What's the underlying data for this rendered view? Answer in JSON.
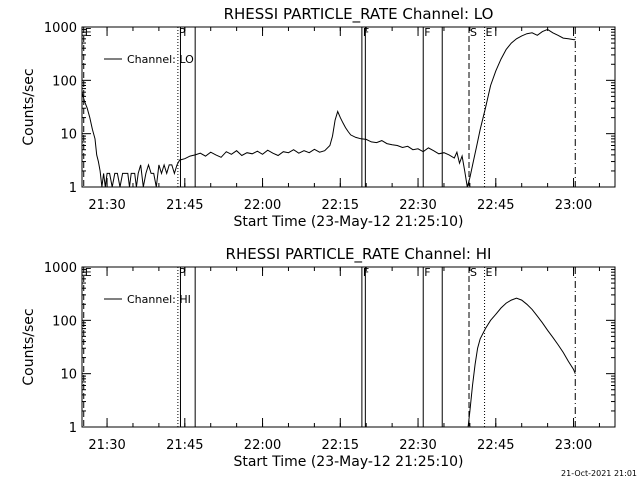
{
  "footer": {
    "timestamp": "21-Oct-2021 21:01"
  },
  "chart_data": [
    {
      "type": "line",
      "title": "RHESSI PARTICLE_RATE Channel: LO",
      "xlabel": "Start Time (23-May-12 21:25:10)",
      "ylabel": "Counts/sec",
      "yscale": "log",
      "ylim": [
        1,
        1000
      ],
      "xlim": [
        "21:25:10",
        "23:08:00"
      ],
      "x_ticks": [
        "21:30",
        "21:45",
        "22:00",
        "22:15",
        "22:30",
        "22:45",
        "23:00"
      ],
      "y_ticks": [
        "1",
        "10",
        "100",
        "1000"
      ],
      "legend": {
        "position": "top-left",
        "entries": [
          "Channel: LO"
        ]
      },
      "markers": [
        {
          "label": "E",
          "time": "21:25:30",
          "style": "dashed"
        },
        {
          "label": "P",
          "time": "21:43:40",
          "style": "dotted"
        },
        {
          "label": "",
          "time": "21:44:10",
          "style": "solid"
        },
        {
          "label": "",
          "time": "21:47:00",
          "style": "solid"
        },
        {
          "label": "F",
          "time": "22:19:10",
          "style": "solid"
        },
        {
          "label": "",
          "time": "22:19:50",
          "style": "solid"
        },
        {
          "label": "F",
          "time": "22:31:00",
          "style": "solid"
        },
        {
          "label": "",
          "time": "22:34:40",
          "style": "solid"
        },
        {
          "label": "S",
          "time": "22:39:50",
          "style": "dashed"
        },
        {
          "label": "E",
          "time": "22:42:50",
          "style": "dotted"
        },
        {
          "label": "",
          "time": "23:00:20",
          "style": "dashdot"
        }
      ],
      "series": [
        {
          "name": "Channel: LO",
          "points": [
            [
              "21:25:10",
              60
            ],
            [
              "21:25:40",
              40
            ],
            [
              "21:26:10",
              30
            ],
            [
              "21:26:40",
              20
            ],
            [
              "21:27:10",
              12
            ],
            [
              "21:27:40",
              8
            ],
            [
              "21:28:00",
              4
            ],
            [
              "21:28:20",
              3
            ],
            [
              "21:28:40",
              2
            ],
            [
              "21:29:00",
              1
            ],
            [
              "21:29:20",
              1.8
            ],
            [
              "21:29:40",
              1
            ],
            [
              "21:30:00",
              1.8
            ],
            [
              "21:30:30",
              1.8
            ],
            [
              "21:31:00",
              1
            ],
            [
              "21:31:30",
              1.8
            ],
            [
              "21:32:00",
              1.8
            ],
            [
              "21:32:30",
              1
            ],
            [
              "21:33:00",
              1.8
            ],
            [
              "21:33:30",
              1.8
            ],
            [
              "21:34:00",
              1.8
            ],
            [
              "21:34:20",
              1
            ],
            [
              "21:34:40",
              1.8
            ],
            [
              "21:35:20",
              1.8
            ],
            [
              "21:35:40",
              1
            ],
            [
              "21:36:00",
              1.8
            ],
            [
              "21:36:30",
              2.6
            ],
            [
              "21:37:00",
              1
            ],
            [
              "21:37:30",
              1.8
            ],
            [
              "21:38:00",
              2.6
            ],
            [
              "21:38:30",
              1.8
            ],
            [
              "21:39:00",
              1.8
            ],
            [
              "21:39:30",
              1
            ],
            [
              "21:40:00",
              2.6
            ],
            [
              "21:40:30",
              1.8
            ],
            [
              "21:41:00",
              2.6
            ],
            [
              "21:41:30",
              1.8
            ],
            [
              "21:42:00",
              2.6
            ],
            [
              "21:42:30",
              2.6
            ],
            [
              "21:43:00",
              1.8
            ],
            [
              "21:43:30",
              2.6
            ],
            [
              "21:44:00",
              3.2
            ],
            [
              "21:45:00",
              3.4
            ],
            [
              "21:46:00",
              3.8
            ],
            [
              "21:47:00",
              4
            ],
            [
              "21:48:00",
              4.3
            ],
            [
              "21:49:00",
              3.8
            ],
            [
              "21:50:00",
              4.5
            ],
            [
              "21:51:00",
              4
            ],
            [
              "21:52:00",
              3.6
            ],
            [
              "21:53:00",
              4.6
            ],
            [
              "21:54:00",
              4.1
            ],
            [
              "21:55:00",
              4.8
            ],
            [
              "21:56:00",
              3.9
            ],
            [
              "21:57:00",
              4.4
            ],
            [
              "21:58:00",
              4.2
            ],
            [
              "21:59:00",
              4.7
            ],
            [
              "22:00:00",
              4.1
            ],
            [
              "22:01:00",
              4.9
            ],
            [
              "22:02:00",
              4.3
            ],
            [
              "22:03:00",
              3.9
            ],
            [
              "22:04:00",
              4.6
            ],
            [
              "22:05:00",
              4.4
            ],
            [
              "22:06:00",
              5
            ],
            [
              "22:07:00",
              4.3
            ],
            [
              "22:08:00",
              4.8
            ],
            [
              "22:09:00",
              4.4
            ],
            [
              "22:10:00",
              5.1
            ],
            [
              "22:11:00",
              4.5
            ],
            [
              "22:12:00",
              4.8
            ],
            [
              "22:13:00",
              6
            ],
            [
              "22:13:30",
              9
            ],
            [
              "22:14:00",
              18
            ],
            [
              "22:14:30",
              26
            ],
            [
              "22:15:00",
              20
            ],
            [
              "22:15:30",
              16
            ],
            [
              "22:16:00",
              13
            ],
            [
              "22:16:30",
              11
            ],
            [
              "22:17:00",
              9.5
            ],
            [
              "22:18:00",
              8.5
            ],
            [
              "22:19:00",
              8
            ],
            [
              "22:20:00",
              7.8
            ],
            [
              "22:21:00",
              7
            ],
            [
              "22:22:00",
              6.8
            ],
            [
              "22:23:00",
              7.4
            ],
            [
              "22:24:00",
              6.5
            ],
            [
              "22:25:00",
              6.2
            ],
            [
              "22:26:00",
              6
            ],
            [
              "22:27:00",
              5.5
            ],
            [
              "22:28:00",
              5.8
            ],
            [
              "22:29:00",
              5
            ],
            [
              "22:30:00",
              5.2
            ],
            [
              "22:31:00",
              4.6
            ],
            [
              "22:32:00",
              5.4
            ],
            [
              "22:33:00",
              4.8
            ],
            [
              "22:34:00",
              4.2
            ],
            [
              "22:35:00",
              4.4
            ],
            [
              "22:36:00",
              4
            ],
            [
              "22:37:00",
              3.5
            ],
            [
              "22:37:30",
              4.5
            ],
            [
              "22:38:00",
              2.8
            ],
            [
              "22:38:30",
              3.8
            ],
            [
              "22:39:00",
              2
            ],
            [
              "22:39:30",
              1
            ],
            [
              "22:40:00",
              1.5
            ],
            [
              "22:40:40",
              3
            ],
            [
              "22:41:20",
              6
            ],
            [
              "22:42:00",
              12
            ],
            [
              "22:43:00",
              30
            ],
            [
              "22:44:00",
              80
            ],
            [
              "22:45:00",
              150
            ],
            [
              "22:46:00",
              250
            ],
            [
              "22:47:00",
              380
            ],
            [
              "22:48:00",
              500
            ],
            [
              "22:49:00",
              600
            ],
            [
              "22:50:00",
              680
            ],
            [
              "22:51:00",
              750
            ],
            [
              "22:52:00",
              780
            ],
            [
              "22:53:00",
              700
            ],
            [
              "22:54:00",
              820
            ],
            [
              "22:55:00",
              900
            ],
            [
              "22:56:00",
              780
            ],
            [
              "22:57:00",
              700
            ],
            [
              "22:58:00",
              620
            ],
            [
              "22:59:00",
              600
            ],
            [
              "23:00:00",
              580
            ],
            [
              "23:00:20",
              580
            ]
          ]
        }
      ]
    },
    {
      "type": "line",
      "title": "RHESSI PARTICLE_RATE Channel: HI",
      "xlabel": "Start Time (23-May-12 21:25:10)",
      "ylabel": "Counts/sec",
      "yscale": "log",
      "ylim": [
        1,
        1000
      ],
      "xlim": [
        "21:25:10",
        "23:08:00"
      ],
      "x_ticks": [
        "21:30",
        "21:45",
        "22:00",
        "22:15",
        "22:30",
        "22:45",
        "23:00"
      ],
      "y_ticks": [
        "1",
        "10",
        "100",
        "1000"
      ],
      "legend": {
        "position": "top-left",
        "entries": [
          "Channel: HI"
        ]
      },
      "markers": [
        {
          "label": "E",
          "time": "21:25:30",
          "style": "dashed"
        },
        {
          "label": "P",
          "time": "21:43:40",
          "style": "dotted"
        },
        {
          "label": "",
          "time": "21:44:10",
          "style": "solid"
        },
        {
          "label": "",
          "time": "21:47:00",
          "style": "solid"
        },
        {
          "label": "F",
          "time": "22:19:10",
          "style": "solid"
        },
        {
          "label": "",
          "time": "22:19:50",
          "style": "solid"
        },
        {
          "label": "F",
          "time": "22:31:00",
          "style": "solid"
        },
        {
          "label": "",
          "time": "22:34:40",
          "style": "solid"
        },
        {
          "label": "S",
          "time": "22:39:50",
          "style": "dashed"
        },
        {
          "label": "E",
          "time": "22:42:50",
          "style": "dotted"
        },
        {
          "label": "",
          "time": "23:00:20",
          "style": "dashdot"
        }
      ],
      "series": [
        {
          "name": "Channel: HI",
          "points": [
            [
              "22:39:40",
              1
            ],
            [
              "22:40:00",
              2
            ],
            [
              "22:40:30",
              6
            ],
            [
              "22:41:00",
              15
            ],
            [
              "22:41:30",
              30
            ],
            [
              "22:42:00",
              45
            ],
            [
              "22:43:00",
              70
            ],
            [
              "22:44:00",
              100
            ],
            [
              "22:45:00",
              130
            ],
            [
              "22:46:00",
              170
            ],
            [
              "22:47:00",
              210
            ],
            [
              "22:48:00",
              240
            ],
            [
              "22:49:00",
              260
            ],
            [
              "22:50:00",
              240
            ],
            [
              "22:51:00",
              200
            ],
            [
              "22:52:00",
              160
            ],
            [
              "22:53:00",
              120
            ],
            [
              "22:54:00",
              90
            ],
            [
              "22:55:00",
              65
            ],
            [
              "22:56:00",
              48
            ],
            [
              "22:57:00",
              35
            ],
            [
              "22:58:00",
              25
            ],
            [
              "22:59:00",
              17
            ],
            [
              "23:00:00",
              12
            ],
            [
              "23:00:20",
              10
            ]
          ]
        }
      ]
    }
  ]
}
